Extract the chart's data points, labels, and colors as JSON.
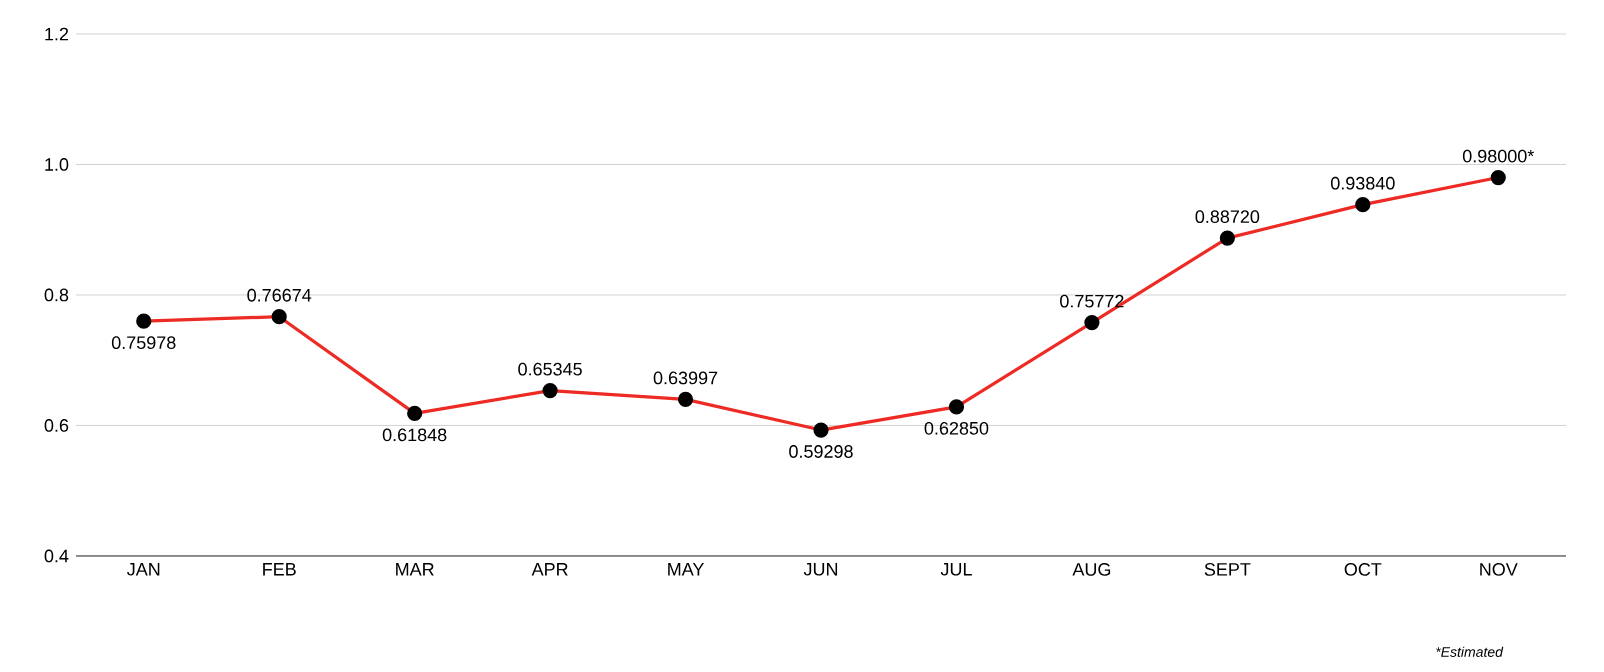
{
  "chart_data": {
    "type": "line",
    "categories": [
      "JAN",
      "FEB",
      "MAR",
      "APR",
      "MAY",
      "JUN",
      "JUL",
      "AUG",
      "SEPT",
      "OCT",
      "NOV"
    ],
    "series": [
      {
        "color": "#ee2a24",
        "values": [
          0.75978,
          0.76674,
          0.61848,
          0.65345,
          0.63997,
          0.59298,
          0.6285,
          0.75772,
          0.8872,
          0.9384,
          0.98
        ],
        "value_labels": [
          "0.75978",
          "0.76674",
          "0.61848",
          "0.65345",
          "0.63997",
          "0.59298",
          "0.62850",
          "0.75772",
          "0.88720",
          "0.93840",
          "0.98000*"
        ]
      }
    ],
    "ylim": [
      0.4,
      1.2
    ],
    "yticks": [
      {
        "value": 0.4,
        "label": "0.4"
      },
      {
        "value": 0.6,
        "label": "0.6"
      },
      {
        "value": 0.8,
        "label": "0.8"
      },
      {
        "value": 1.0,
        "label": "1.0"
      },
      {
        "value": 1.2,
        "label": "1.2"
      }
    ],
    "grid": "y",
    "marker": "circle",
    "line_style": "solid",
    "annotations": [
      "*Estimated"
    ]
  }
}
